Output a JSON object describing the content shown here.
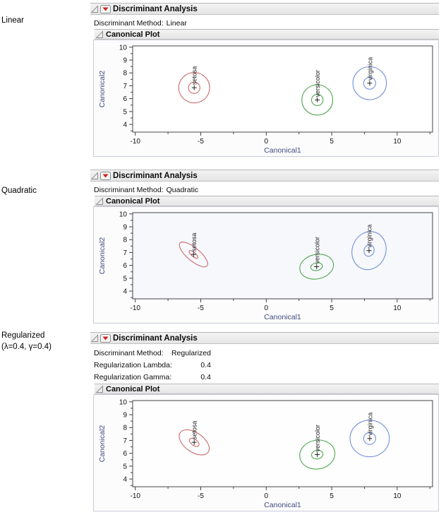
{
  "side_labels": [
    {
      "lines": [
        "Linear"
      ]
    },
    {
      "lines": [
        "Quadratic"
      ]
    },
    {
      "lines": [
        "Regularized",
        "(λ=0.4, γ=0.4)"
      ]
    }
  ],
  "icons": {
    "disclosure": "disclosure-triangle",
    "menu": "red-triangle-menu"
  },
  "panels": [
    {
      "title": "Discriminant Analysis",
      "info_rows": [
        {
          "label": "Discriminant Method:",
          "value": "Linear"
        }
      ],
      "plot_title": "Canonical Plot"
    },
    {
      "title": "Discriminant Analysis",
      "info_rows": [
        {
          "label": "Discriminant Method:",
          "value": "Quadratic"
        }
      ],
      "plot_title": "Canonical Plot"
    },
    {
      "title": "Discriminant Analysis",
      "info_rows": [
        {
          "label": "Discriminant Method:",
          "value": "Regularized"
        },
        {
          "label": "Regularization Lambda:",
          "value": "0.4"
        },
        {
          "label": "Regularization Gamma:",
          "value": "0.4"
        }
      ],
      "plot_title": "Canonical Plot"
    }
  ],
  "chart_data": [
    {
      "type": "scatter",
      "title": "Canonical Plot",
      "xlabel": "Canonical1",
      "ylabel": "Canonical2",
      "xlim": [
        -10.2,
        12.7
      ],
      "ylim": [
        3.4,
        10.1
      ],
      "x_major_ticks": [
        -10,
        -5,
        0,
        5,
        10
      ],
      "x_minor_ticks": [
        -7.5,
        -2.5,
        2.5,
        7.5,
        12.5
      ],
      "y_major_ticks": [
        4,
        5,
        6,
        7,
        8,
        9,
        10
      ],
      "y_minor_ticks": [
        3.5,
        4.5,
        5.5,
        6.5,
        7.5,
        8.5,
        9.5
      ],
      "grid": false,
      "legend": "group-labels-on-plot",
      "plot_bg": "#ffffff",
      "axis_title_color": "#3e4a7c",
      "groups": [
        {
          "name": "setosa",
          "color": "#c96b6b",
          "center": [
            -5.5,
            6.85
          ],
          "outer": {
            "rx": 1.18,
            "ry": 1.18,
            "angle": 0
          },
          "inner": {
            "rx": 0.44,
            "ry": 0.44,
            "angle": 0
          }
        },
        {
          "name": "versicolor",
          "color": "#4fa64f",
          "center": [
            3.9,
            5.9
          ],
          "outer": {
            "rx": 1.18,
            "ry": 1.18,
            "angle": 0
          },
          "inner": {
            "rx": 0.44,
            "ry": 0.44,
            "angle": 0
          }
        },
        {
          "name": "virginica",
          "color": "#7190d9",
          "center": [
            7.9,
            7.2
          ],
          "outer": {
            "rx": 1.28,
            "ry": 1.28,
            "angle": 0
          },
          "inner": {
            "rx": 0.46,
            "ry": 0.46,
            "angle": 0
          }
        }
      ]
    },
    {
      "type": "scatter",
      "title": "Canonical Plot",
      "xlabel": "Canonical1",
      "ylabel": "Canonical2",
      "xlim": [
        -10.2,
        12.7
      ],
      "ylim": [
        3.4,
        10.1
      ],
      "x_major_ticks": [
        -10,
        -5,
        0,
        5,
        10
      ],
      "x_minor_ticks": [
        -7.5,
        -2.5,
        2.5,
        7.5,
        12.5
      ],
      "y_major_ticks": [
        4,
        5,
        6,
        7,
        8,
        9,
        10
      ],
      "y_minor_ticks": [
        3.5,
        4.5,
        5.5,
        6.5,
        7.5,
        8.5,
        9.5
      ],
      "grid": false,
      "legend": "group-labels-on-plot",
      "plot_bg": "#f7f8fc",
      "axis_title_color": "#3e4a7c",
      "groups": [
        {
          "name": "setosa",
          "color": "#c96b6b",
          "center": [
            -5.55,
            6.85
          ],
          "outer": {
            "rx": 1.35,
            "ry": 0.5,
            "angle": 40
          },
          "inner": {
            "rx": 0.42,
            "ry": 0.16,
            "angle": 40
          }
        },
        {
          "name": "versicolor",
          "color": "#4fa64f",
          "center": [
            3.85,
            5.9
          ],
          "outer": {
            "rx": 1.3,
            "ry": 0.95,
            "angle": -12
          },
          "inner": {
            "rx": 0.45,
            "ry": 0.3,
            "angle": -12
          }
        },
        {
          "name": "virginica",
          "color": "#7190d9",
          "center": [
            7.85,
            7.15
          ],
          "outer": {
            "rx": 1.28,
            "ry": 1.5,
            "angle": 20
          },
          "inner": {
            "rx": 0.38,
            "ry": 0.45,
            "angle": 20
          }
        }
      ]
    },
    {
      "type": "scatter",
      "title": "Canonical Plot",
      "xlabel": "Canonical1",
      "ylabel": "Canonical2",
      "xlim": [
        -10.2,
        12.7
      ],
      "ylim": [
        3.4,
        10.1
      ],
      "x_major_ticks": [
        -10,
        -5,
        0,
        5,
        10
      ],
      "x_minor_ticks": [
        -7.5,
        -2.5,
        2.5,
        7.5,
        12.5
      ],
      "y_major_ticks": [
        4,
        5,
        6,
        7,
        8,
        9,
        10
      ],
      "y_minor_ticks": [
        3.5,
        4.5,
        5.5,
        6.5,
        7.5,
        8.5,
        9.5
      ],
      "grid": false,
      "legend": "group-labels-on-plot",
      "plot_bg": "#fefefe",
      "axis_title_color": "#3e4a7c",
      "groups": [
        {
          "name": "setosa",
          "color": "#c96b6b",
          "center": [
            -5.5,
            6.85
          ],
          "outer": {
            "rx": 1.3,
            "ry": 0.75,
            "angle": 35
          },
          "inner": {
            "rx": 0.42,
            "ry": 0.24,
            "angle": 35
          }
        },
        {
          "name": "versicolor",
          "color": "#4fa64f",
          "center": [
            3.9,
            5.9
          ],
          "outer": {
            "rx": 1.35,
            "ry": 1.12,
            "angle": -10
          },
          "inner": {
            "rx": 0.44,
            "ry": 0.34,
            "angle": -10
          }
        },
        {
          "name": "virginica",
          "color": "#7190d9",
          "center": [
            7.9,
            7.15
          ],
          "outer": {
            "rx": 1.5,
            "ry": 1.42,
            "angle": 0
          },
          "inner": {
            "rx": 0.46,
            "ry": 0.46,
            "angle": 0
          }
        }
      ]
    }
  ]
}
